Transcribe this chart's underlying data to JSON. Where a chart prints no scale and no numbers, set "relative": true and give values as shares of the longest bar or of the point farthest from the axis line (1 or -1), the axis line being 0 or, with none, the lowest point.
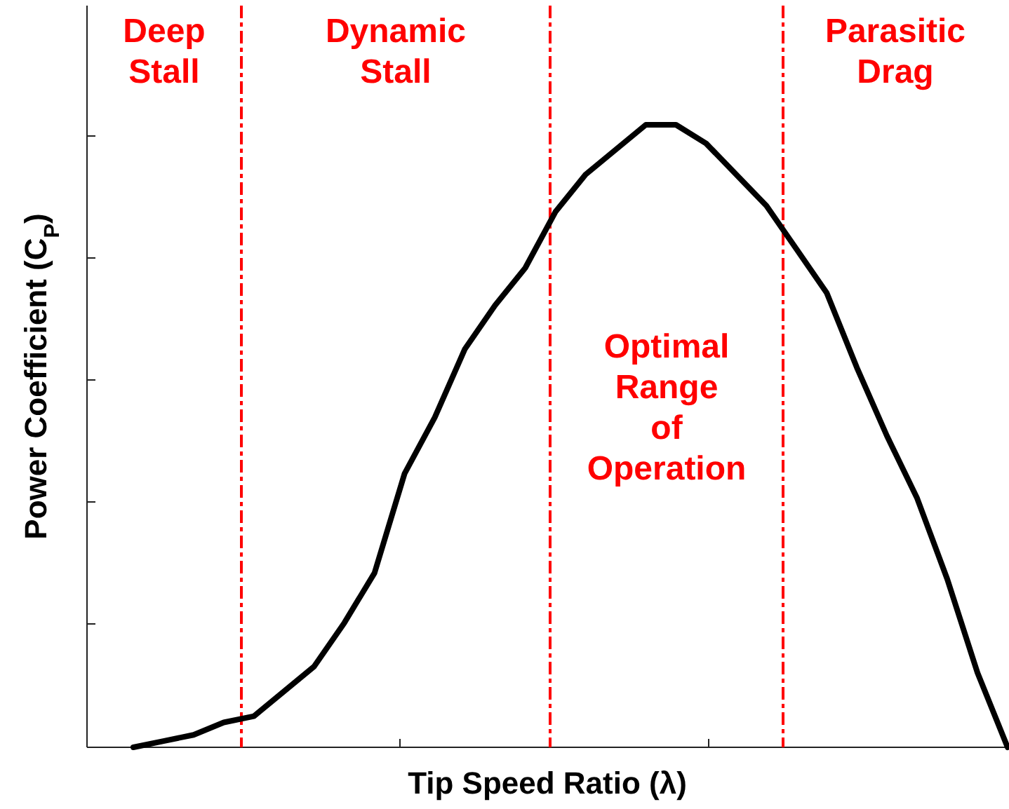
{
  "chart_data": {
    "type": "line",
    "relative": true,
    "xlabel": "Tip Speed Ratio (λ)",
    "ylabel": "Power Coefficient (C$_{P}$)",
    "marker": "none",
    "line_style": "solid",
    "categories": [
      null,
      null,
      null,
      null,
      null,
      null,
      null,
      null,
      null,
      null,
      null,
      null,
      null,
      null,
      null,
      null,
      null,
      null,
      null,
      null,
      null,
      null,
      null,
      null,
      null,
      null,
      null,
      null,
      null,
      null
    ],
    "series": [
      {
        "color": "#000000",
        "values": [
          0,
          0.01,
          0.02,
          0.04,
          0.05,
          0.09,
          0.13,
          0.2,
          0.28,
          0.44,
          0.53,
          0.64,
          0.71,
          0.77,
          0.86,
          0.92,
          0.96,
          1,
          1,
          0.97,
          0.92,
          0.87,
          0.8,
          0.73,
          0.61,
          0.5,
          0.4,
          0.27,
          0.12,
          0
        ]
      }
    ],
    "annotations": [
      "Deep\nStall",
      "Dynamic\nStall",
      "Optimal\nRange\nof\nOperation",
      "Parasitic\nDrag"
    ]
  }
}
